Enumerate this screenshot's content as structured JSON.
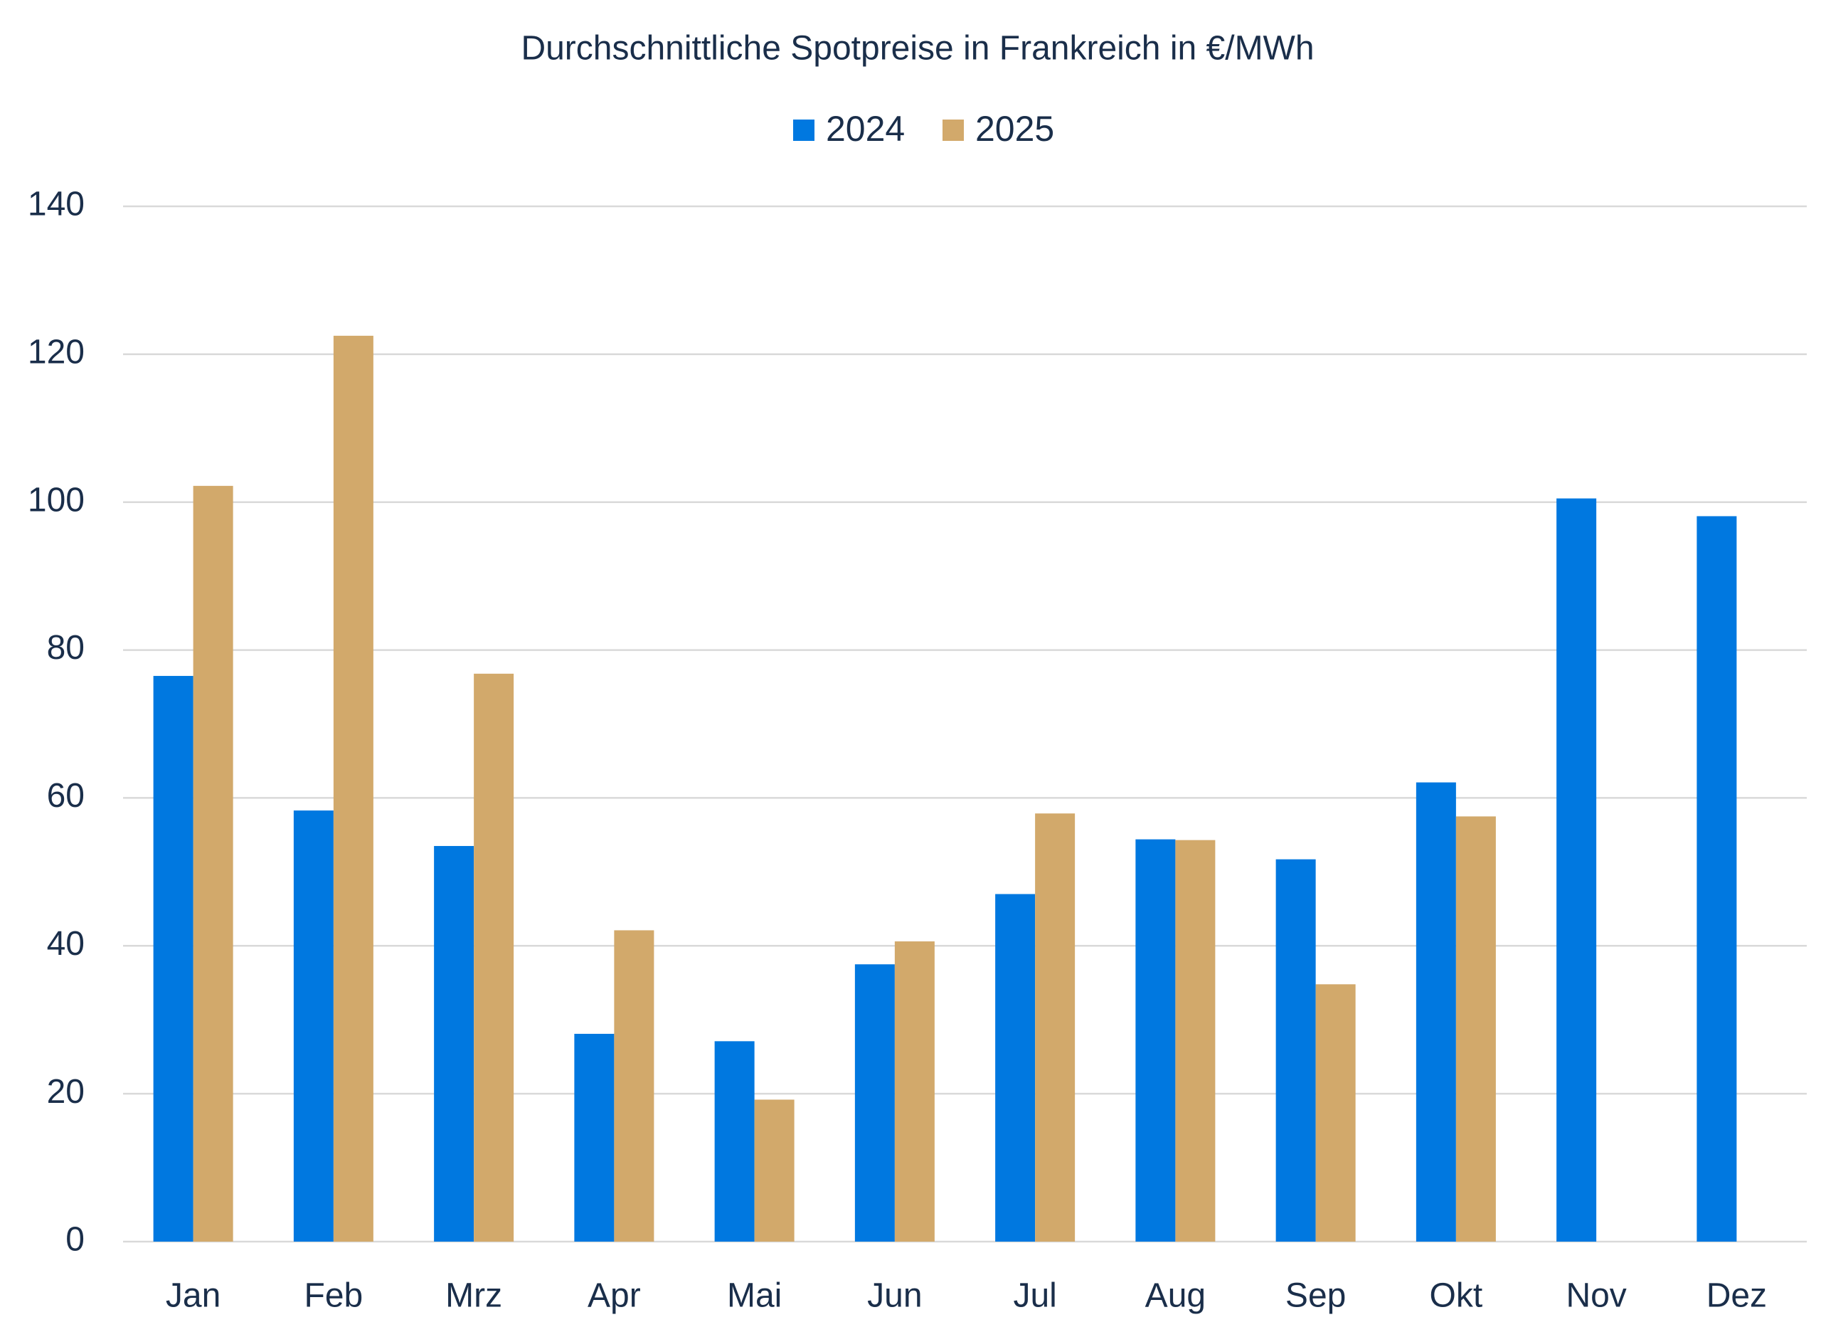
{
  "chart_data": {
    "type": "bar",
    "title": "Durchschnittliche Spotpreise in Frankreich in €/MWh",
    "categories": [
      "Jan",
      "Feb",
      "Mrz",
      "Apr",
      "Mai",
      "Jun",
      "Jul",
      "Aug",
      "Sep",
      "Okt",
      "Nov",
      "Dez"
    ],
    "series": [
      {
        "name": "2024",
        "color": "#0078e0",
        "values": [
          76.5,
          58.3,
          53.5,
          28.1,
          27.1,
          37.5,
          47.0,
          54.4,
          51.7,
          62.1,
          100.5,
          98.1
        ]
      },
      {
        "name": "2025",
        "color": "#d2a96b",
        "values": [
          102.2,
          122.5,
          76.8,
          42.1,
          19.2,
          40.6,
          57.9,
          54.3,
          34.8,
          57.5,
          null,
          null
        ]
      }
    ],
    "ylim": [
      0,
      140
    ],
    "yticks": [
      0,
      20,
      40,
      60,
      80,
      100,
      120,
      140
    ],
    "grid": true,
    "legend": "top"
  }
}
